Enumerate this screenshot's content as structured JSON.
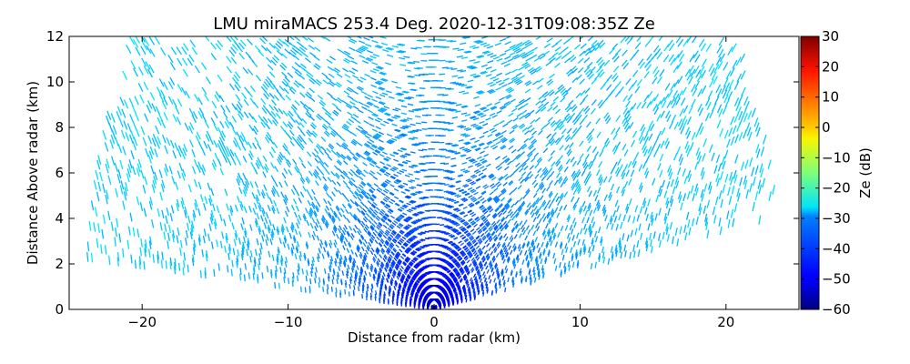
{
  "chart_data": {
    "type": "heatmap",
    "title": "LMU miraMACS 253.4 Deg. 2020-12-31T09:08:35Z  Ze",
    "xlabel": "Distance from radar (km)",
    "ylabel": "Distance Above radar  (km)",
    "colorbar_label": "Ze (dB)",
    "xlim": [
      -25,
      25
    ],
    "ylim": [
      0,
      12
    ],
    "clim": [
      -60,
      30
    ],
    "x_ticks": [
      -20,
      -10,
      0,
      10,
      20
    ],
    "x_tick_labels": [
      "−20",
      "−10",
      "0",
      "10",
      "20"
    ],
    "y_ticks": [
      0,
      2,
      4,
      6,
      8,
      10,
      12
    ],
    "y_tick_labels": [
      "0",
      "2",
      "4",
      "6",
      "8",
      "10",
      "12"
    ],
    "colorbar_ticks": [
      -60,
      -50,
      -40,
      -30,
      -20,
      -10,
      0,
      10,
      20,
      30
    ],
    "colorbar_tick_labels": [
      "−60",
      "−50",
      "−40",
      "−30",
      "−20",
      "−10",
      "0",
      "10",
      "20",
      "30"
    ],
    "colormap": "jet",
    "scan": {
      "kind": "RHI",
      "max_range_km": 24,
      "min_elevation_left_deg": 5,
      "min_elevation_right_deg": 10,
      "ze_near_radar_db": -55,
      "ze_far_db": -30
    },
    "grid": false,
    "legend": "none"
  }
}
